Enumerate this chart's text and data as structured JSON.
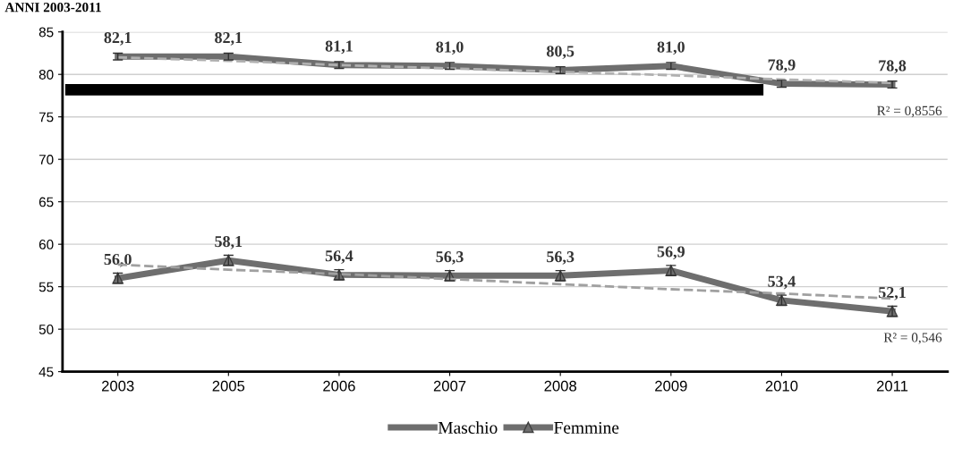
{
  "chart_data": {
    "type": "line",
    "title": "ANNI 2003-2011",
    "categories": [
      "2003",
      "2005",
      "2006",
      "2007",
      "2008",
      "2009",
      "2010",
      "2011"
    ],
    "series": [
      {
        "name": "Maschio",
        "color": "#6e6e6e",
        "marker": "none",
        "values": [
          82.1,
          82.1,
          81.1,
          81.0,
          80.5,
          81.0,
          78.9,
          78.8
        ],
        "value_labels": [
          "82,1",
          "82,1",
          "81,1",
          "81,0",
          "80,5",
          "81,0",
          "78,9",
          "78,8"
        ],
        "errors": [
          0.4,
          0.4,
          0.4,
          0.4,
          0.4,
          0.4,
          0.4,
          0.4
        ]
      },
      {
        "name": "Femmine",
        "color": "#6e6e6e",
        "marker": "triangle",
        "values": [
          56.0,
          58.1,
          56.4,
          56.3,
          56.3,
          56.9,
          53.4,
          52.1
        ],
        "value_labels": [
          "56,0",
          "58,1",
          "56,4",
          "56,3",
          "56,3",
          "56,9",
          "53,4",
          "52,1"
        ],
        "errors": [
          0.6,
          0.6,
          0.6,
          0.6,
          0.6,
          0.6,
          0.6,
          0.6
        ]
      },
      {
        "type": "line",
        "color": "#b0b0b0",
        "line_style": "dashed",
        "marker": "none",
        "values": [
          82.0,
          81.6,
          81.1,
          80.7,
          80.3,
          79.9,
          79.4,
          79.0
        ]
      },
      {
        "type": "line",
        "color": "#a0a0a0",
        "line_style": "dashed",
        "marker": "none",
        "values": [
          57.6,
          57.0,
          56.5,
          55.9,
          55.3,
          54.7,
          54.2,
          53.6
        ]
      }
    ],
    "annotations": [
      "R² = 0,8556",
      "R² = 0,546"
    ],
    "ylim": [
      45,
      85
    ],
    "yticks": [
      45,
      50,
      55,
      60,
      65,
      70,
      75,
      80,
      85
    ],
    "grid": "y",
    "legend": "bottom"
  }
}
